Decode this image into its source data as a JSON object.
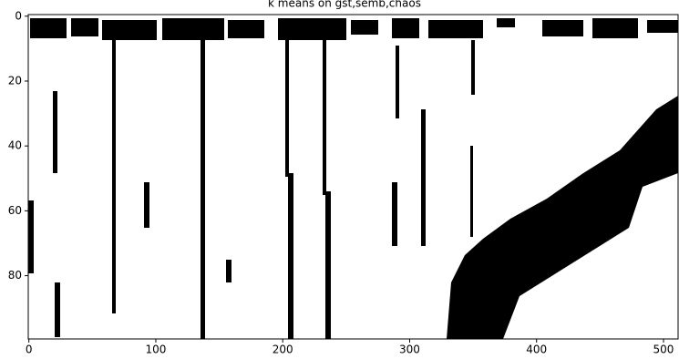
{
  "chart_data": {
    "type": "image",
    "title": "k means on gst,semb,chaos",
    "xlim": [
      -0.5,
      511.5
    ],
    "xticks": [
      0,
      100,
      200,
      300,
      400,
      500
    ],
    "ylim": [
      99.5,
      -0.5
    ],
    "yticks": [
      0,
      20,
      40,
      60,
      80
    ]
  }
}
